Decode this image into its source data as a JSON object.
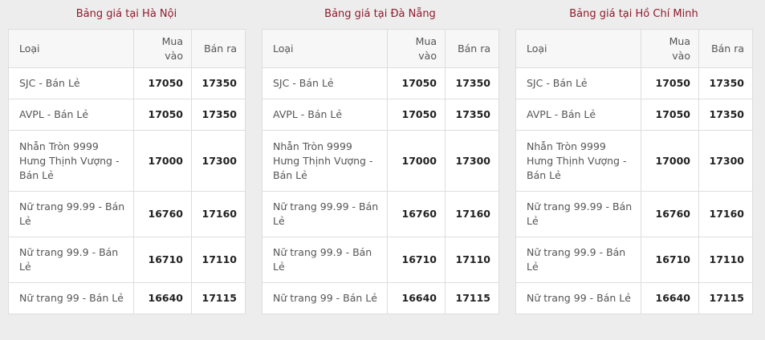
{
  "colors": {
    "title": "#8f1b2c",
    "background": "#ededed"
  },
  "tables": [
    {
      "title": "Bảng giá tại Hà Nội",
      "headers": [
        "Loại",
        "Mua vào",
        "Bán ra"
      ],
      "rows": [
        [
          "SJC - Bán Lẻ",
          "17050",
          "17350"
        ],
        [
          "AVPL - Bán Lẻ",
          "17050",
          "17350"
        ],
        [
          "Nhẫn Tròn 9999 Hưng Thịnh Vượng - Bán Lẻ",
          "17000",
          "17300"
        ],
        [
          "Nữ trang 99.99 - Bán Lẻ",
          "16760",
          "17160"
        ],
        [
          "Nữ trang 99.9 - Bán Lẻ",
          "16710",
          "17110"
        ],
        [
          "Nữ trang 99 - Bán Lẻ",
          "16640",
          "17115"
        ]
      ]
    },
    {
      "title": "Bảng giá tại Đà Nẵng",
      "headers": [
        "Loại",
        "Mua vào",
        "Bán ra"
      ],
      "rows": [
        [
          "SJC - Bán Lẻ",
          "17050",
          "17350"
        ],
        [
          "AVPL - Bán Lẻ",
          "17050",
          "17350"
        ],
        [
          "Nhẫn Tròn 9999 Hưng Thịnh Vượng - Bán Lẻ",
          "17000",
          "17300"
        ],
        [
          "Nữ trang 99.99 - Bán Lẻ",
          "16760",
          "17160"
        ],
        [
          "Nữ trang 99.9 - Bán Lẻ",
          "16710",
          "17110"
        ],
        [
          "Nữ trang 99 - Bán Lẻ",
          "16640",
          "17115"
        ]
      ]
    },
    {
      "title": "Bảng giá tại Hồ Chí Minh",
      "headers": [
        "Loại",
        "Mua vào",
        "Bán ra"
      ],
      "rows": [
        [
          "SJC - Bán Lẻ",
          "17050",
          "17350"
        ],
        [
          "AVPL - Bán Lẻ",
          "17050",
          "17350"
        ],
        [
          "Nhẫn Tròn 9999 Hưng Thịnh Vượng - Bán Lẻ",
          "17000",
          "17300"
        ],
        [
          "Nữ trang 99.99 - Bán Lẻ",
          "16760",
          "17160"
        ],
        [
          "Nữ trang 99.9 - Bán Lẻ",
          "16710",
          "17110"
        ],
        [
          "Nữ trang 99 - Bán Lẻ",
          "16640",
          "17115"
        ]
      ]
    }
  ]
}
